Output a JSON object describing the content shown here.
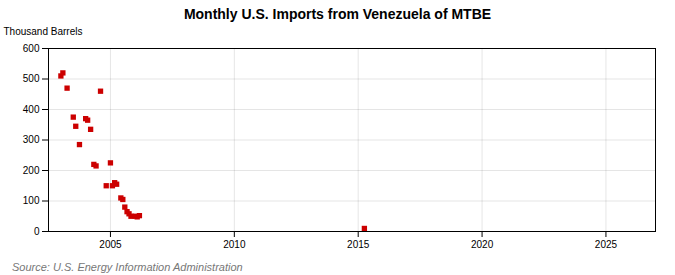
{
  "chart_data": {
    "type": "scatter",
    "title": "Monthly U.S. Imports from Venezuela of MTBE",
    "ylabel": "Thousand Barrels",
    "source": "Source: U.S. Energy Information Administration",
    "color": "#cc0000",
    "marker": "square",
    "grid": true,
    "xlim": [
      2002.5,
      2027
    ],
    "ylim": [
      0,
      600
    ],
    "xticks": [
      2005,
      2010,
      2015,
      2020,
      2025
    ],
    "yticks": [
      0,
      100,
      200,
      300,
      400,
      500,
      600
    ],
    "x": [
      2003.0,
      2003.08,
      2003.25,
      2003.5,
      2003.6,
      2003.75,
      2004.0,
      2004.08,
      2004.2,
      2004.33,
      2004.42,
      2004.6,
      2004.83,
      2005.0,
      2005.08,
      2005.17,
      2005.25,
      2005.42,
      2005.5,
      2005.58,
      2005.67,
      2005.75,
      2005.83,
      2006.0,
      2006.08,
      2006.17,
      2015.25
    ],
    "values": [
      510,
      520,
      470,
      375,
      345,
      285,
      370,
      365,
      335,
      220,
      215,
      460,
      150,
      225,
      150,
      160,
      155,
      110,
      105,
      80,
      65,
      58,
      50,
      50,
      48,
      52,
      10
    ]
  }
}
